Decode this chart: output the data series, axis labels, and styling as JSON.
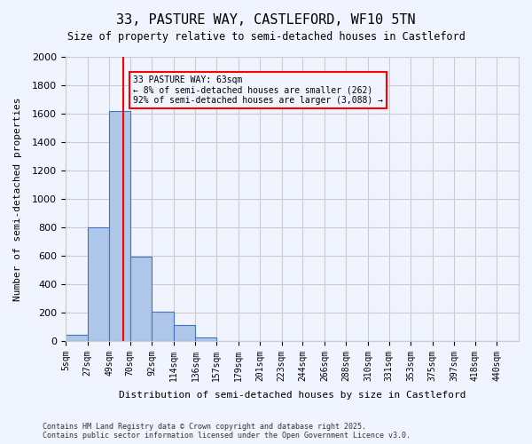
{
  "title_line1": "33, PASTURE WAY, CASTLEFORD, WF10 5TN",
  "title_line2": "Size of property relative to semi-detached houses in Castleford",
  "xlabel": "Distribution of semi-detached houses by size in Castleford",
  "ylabel": "Number of semi-detached properties",
  "categories": [
    "5sqm",
    "27sqm",
    "49sqm",
    "70sqm",
    "92sqm",
    "114sqm",
    "136sqm",
    "157sqm",
    "179sqm",
    "201sqm",
    "223sqm",
    "244sqm",
    "266sqm",
    "288sqm",
    "310sqm",
    "331sqm",
    "353sqm",
    "375sqm",
    "397sqm",
    "418sqm",
    "440sqm"
  ],
  "bar_values": [
    45,
    800,
    1620,
    595,
    205,
    110,
    25,
    0,
    0,
    0,
    0,
    0,
    0,
    0,
    0,
    0,
    0,
    0,
    0,
    0,
    0
  ],
  "bar_color": "#aec6e8",
  "bar_edge_color": "#4472c4",
  "property_size": 63,
  "property_bin_index": 1,
  "red_line_x": 63,
  "annotation_text": "33 PASTURE WAY: 63sqm\n← 8% of semi-detached houses are smaller (262)\n92% of semi-detached houses are larger (3,088) →",
  "ylim": [
    0,
    2000
  ],
  "yticks": [
    0,
    200,
    400,
    600,
    800,
    1000,
    1200,
    1400,
    1600,
    1800,
    2000
  ],
  "grid_color": "#cccccc",
  "background_color": "#f0f4ff",
  "footnote": "Contains HM Land Registry data © Crown copyright and database right 2025.\nContains public sector information licensed under the Open Government Licence v3.0."
}
